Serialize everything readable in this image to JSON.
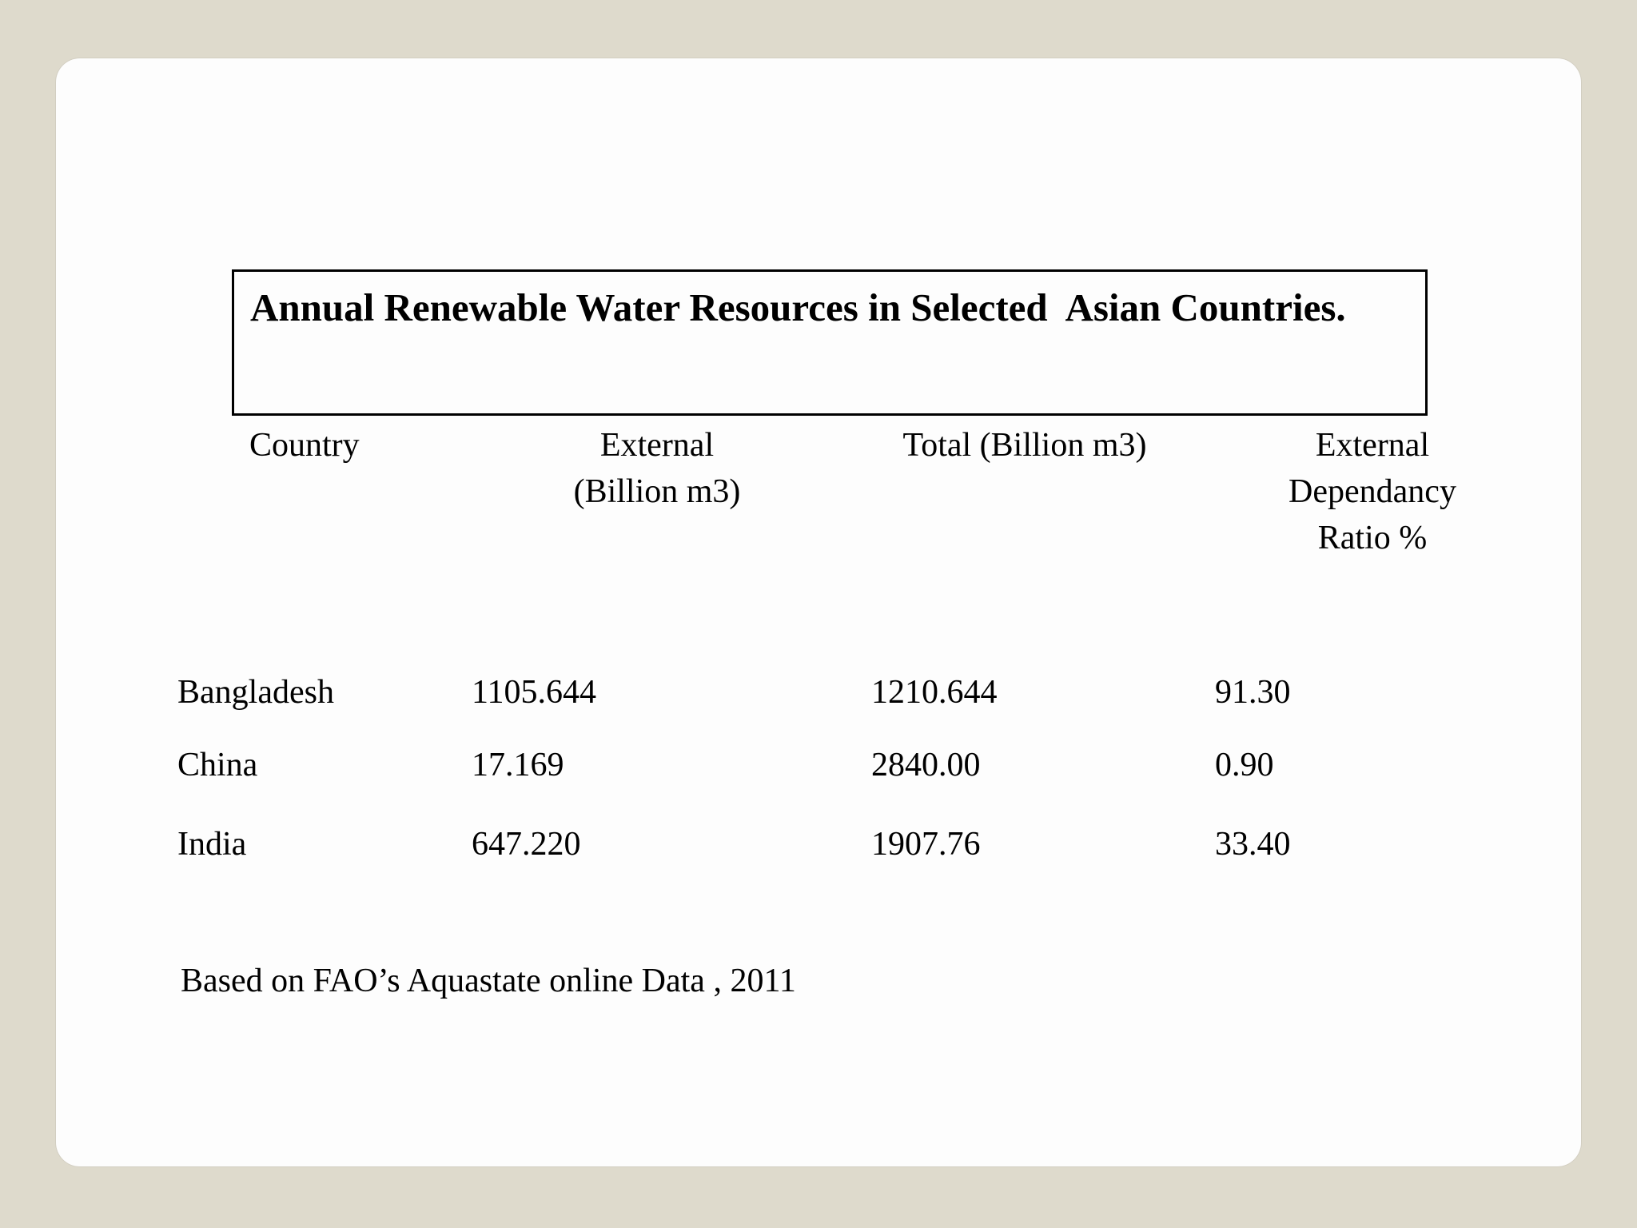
{
  "slide": {
    "title": "Annual Renewable Water Resources in Selected  Asian Countries.",
    "source_note": "Based on FAO’s Aquastate online Data , 2011"
  },
  "table": {
    "headers": {
      "country": "Country",
      "external": "External\n(Billion m3)",
      "total": "Total (Billion m3)",
      "ratio": "External\nDependancy\nRatio %"
    },
    "rows": [
      {
        "country": "Bangladesh",
        "external": "1105.644",
        "total": "1210.644",
        "ratio": "91.30"
      },
      {
        "country": "China",
        "external": "17.169",
        "total": "2840.00",
        "ratio": "0.90"
      },
      {
        "country": "India",
        "external": "647.220",
        "total": "1907.76",
        "ratio": "33.40"
      }
    ]
  },
  "chart_data": {
    "type": "table",
    "title": "Annual Renewable Water Resources in Selected Asian Countries.",
    "columns": [
      "Country",
      "External (Billion m3)",
      "Total (Billion m3)",
      "External Dependancy Ratio %"
    ],
    "rows": [
      [
        "Bangladesh",
        1105.644,
        1210.644,
        91.3
      ],
      [
        "China",
        17.169,
        2840.0,
        0.9
      ],
      [
        "India",
        647.22,
        1907.76,
        33.4
      ]
    ],
    "source": "Based on FAO’s Aquastate online Data , 2011"
  },
  "colors": {
    "background": "#DEDACC",
    "card": "#FDFDFD",
    "text": "#000000",
    "title_box_border": "#000000"
  }
}
